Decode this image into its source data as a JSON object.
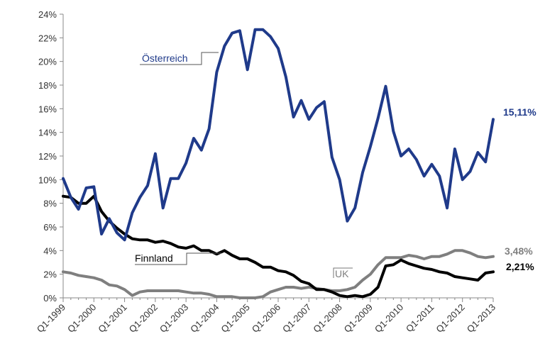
{
  "chart_data": {
    "type": "line",
    "ylim": [
      0,
      24
    ],
    "y_ticks": [
      "0%",
      "2%",
      "4%",
      "6%",
      "8%",
      "10%",
      "12%",
      "14%",
      "16%",
      "18%",
      "20%",
      "22%",
      "24%"
    ],
    "x_tick_labels": [
      "Q1-1999",
      "Q1-2000",
      "Q1-2001",
      "Q1-2002",
      "Q1-2003",
      "Q1-2004",
      "Q1-2005",
      "Q1-2006",
      "Q1-2007",
      "Q1-2008",
      "Q1-2009",
      "Q1-2010",
      "Q1-2011",
      "Q1-2012",
      "Q1-2013"
    ],
    "x_quarters_start": "Q1-1999",
    "grid": false,
    "series": [
      {
        "name": "Österreich",
        "color": "#1f3a8a",
        "end_label": "15,11%",
        "values": [
          10.1,
          8.5,
          7.5,
          9.3,
          9.4,
          5.4,
          6.7,
          5.5,
          4.9,
          7.2,
          8.5,
          9.5,
          12.2,
          7.6,
          10.1,
          10.1,
          11.4,
          13.5,
          12.5,
          14.3,
          19.1,
          21.3,
          22.4,
          22.6,
          19.3,
          22.7,
          22.7,
          22.1,
          21.1,
          18.7,
          15.3,
          16.7,
          15.1,
          16.1,
          16.6,
          11.9,
          10.0,
          6.5,
          7.6,
          10.6,
          12.8,
          15.2,
          17.9,
          14.1,
          12.0,
          12.6,
          11.7,
          10.3,
          11.3,
          10.3,
          7.6,
          12.6,
          10.0,
          10.7,
          12.3,
          11.5,
          15.1
        ]
      },
      {
        "name": "Finnland",
        "color": "#000000",
        "end_label": "2,21%",
        "values": [
          8.6,
          8.5,
          8.0,
          8.0,
          8.6,
          7.3,
          6.5,
          5.9,
          5.4,
          5.0,
          4.9,
          4.9,
          4.7,
          4.8,
          4.6,
          4.3,
          4.2,
          4.4,
          4.0,
          4.0,
          3.7,
          4.0,
          3.6,
          3.3,
          3.3,
          3.0,
          2.6,
          2.6,
          2.3,
          2.2,
          1.9,
          1.4,
          1.2,
          0.7,
          0.7,
          0.5,
          0.2,
          0.1,
          0.2,
          0.1,
          0.3,
          0.9,
          2.7,
          2.8,
          3.2,
          2.9,
          2.7,
          2.5,
          2.4,
          2.2,
          2.1,
          1.8,
          1.7,
          1.6,
          1.5,
          2.1,
          2.2
        ]
      },
      {
        "name": "UK",
        "color": "#7f7f7f",
        "end_label": "3,48%",
        "values": [
          2.2,
          2.1,
          1.9,
          1.8,
          1.7,
          1.5,
          1.1,
          1.0,
          0.7,
          0.2,
          0.5,
          0.6,
          0.6,
          0.6,
          0.6,
          0.6,
          0.5,
          0.4,
          0.4,
          0.3,
          0.1,
          0.1,
          0.1,
          0.0,
          0.0,
          0.0,
          0.1,
          0.5,
          0.7,
          0.9,
          0.9,
          0.8,
          0.9,
          0.8,
          0.7,
          0.6,
          0.6,
          0.7,
          0.9,
          1.5,
          2.0,
          2.8,
          3.4,
          3.4,
          3.4,
          3.6,
          3.5,
          3.3,
          3.5,
          3.5,
          3.7,
          4.0,
          4.0,
          3.8,
          3.5,
          3.4,
          3.5
        ]
      }
    ]
  }
}
